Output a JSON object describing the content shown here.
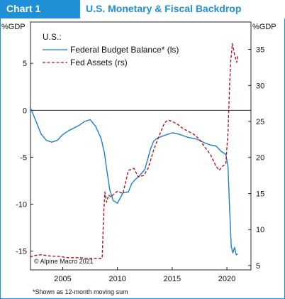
{
  "header": {
    "chart_number": "Chart 1",
    "title": "U.S. Monetary & Fiscal Backdrop"
  },
  "chart_data": {
    "type": "line",
    "left_axis": {
      "unit_label": "%GDP",
      "ticks": [
        5,
        0,
        -5,
        -10,
        -15
      ],
      "tick_labels": [
        "5",
        "0",
        "-5",
        "-10",
        "-15"
      ],
      "range": [
        -17,
        9.4
      ]
    },
    "right_axis": {
      "unit_label": "%GDP",
      "ticks": [
        5,
        10,
        15,
        20,
        25,
        30,
        35
      ],
      "tick_labels": [
        "5",
        "10",
        "15",
        "20",
        "25",
        "30",
        "35"
      ],
      "range": [
        4.4,
        38.8
      ]
    },
    "x_axis": {
      "ticks": [
        2005,
        2010,
        2015,
        2020
      ],
      "tick_labels": [
        "2005",
        "2010",
        "2015",
        "2020"
      ],
      "range": [
        2002.05,
        2022.2
      ]
    },
    "legend": {
      "title": "U.S.:",
      "placement": "top-left",
      "items": [
        {
          "label": "Federal Budget Balance* (ls)",
          "color": "#1a7fd0",
          "style": "solid"
        },
        {
          "label": "Fed Assets (rs)",
          "color": "#b3121f",
          "style": "dashed"
        }
      ]
    },
    "series": [
      {
        "name": "Federal Budget Balance* (ls)",
        "axis": "left",
        "color": "#1a7fd0",
        "x": [
          2002.0,
          2002.5,
          2003.0,
          2003.5,
          2004.0,
          2004.5,
          2005.0,
          2005.5,
          2006.0,
          2006.5,
          2007.0,
          2007.5,
          2008.0,
          2008.5,
          2008.8,
          2009.0,
          2009.3,
          2009.6,
          2010.0,
          2010.5,
          2011.0,
          2011.3,
          2011.6,
          2012.0,
          2012.5,
          2013.0,
          2013.3,
          2013.6,
          2014.0,
          2014.5,
          2015.0,
          2015.5,
          2016.0,
          2016.5,
          2017.0,
          2017.5,
          2018.0,
          2018.5,
          2019.0,
          2019.5,
          2019.9,
          2020.1,
          2020.25,
          2020.4,
          2020.55,
          2020.7,
          2020.85,
          2021.0
        ],
        "y": [
          0.4,
          -1.0,
          -2.5,
          -3.2,
          -3.4,
          -3.2,
          -2.6,
          -2.2,
          -1.9,
          -1.6,
          -1.2,
          -1.0,
          -1.7,
          -3.0,
          -4.5,
          -6.2,
          -8.5,
          -9.6,
          -9.9,
          -8.8,
          -8.7,
          -7.8,
          -7.4,
          -7.0,
          -6.3,
          -4.2,
          -3.3,
          -3.0,
          -2.8,
          -2.6,
          -2.4,
          -2.5,
          -2.7,
          -2.9,
          -3.0,
          -3.2,
          -3.5,
          -3.7,
          -3.8,
          -4.4,
          -4.7,
          -6.0,
          -10.5,
          -14.5,
          -15.2,
          -14.6,
          -15.4,
          -15.3
        ]
      },
      {
        "name": "Fed Assets (rs)",
        "axis": "right",
        "color": "#b3121f",
        "x": [
          2002.0,
          2002.5,
          2003.0,
          2003.5,
          2004.0,
          2004.5,
          2005.0,
          2005.5,
          2006.0,
          2006.5,
          2007.0,
          2007.5,
          2008.0,
          2008.6,
          2008.75,
          2008.85,
          2009.0,
          2009.2,
          2009.4,
          2009.7,
          2010.0,
          2010.5,
          2011.0,
          2011.5,
          2011.9,
          2012.4,
          2012.8,
          2013.3,
          2013.8,
          2014.3,
          2014.6,
          2015.0,
          2015.5,
          2016.0,
          2016.5,
          2017.0,
          2017.5,
          2018.0,
          2018.5,
          2019.0,
          2019.3,
          2019.6,
          2019.9,
          2020.1,
          2020.25,
          2020.35,
          2020.5,
          2020.7,
          2020.9,
          2021.0
        ],
        "y": [
          6.2,
          6.4,
          6.5,
          6.4,
          6.3,
          6.3,
          6.2,
          6.1,
          6.1,
          6.1,
          6.0,
          6.0,
          6.0,
          6.0,
          12.5,
          15.2,
          13.8,
          14.8,
          14.5,
          15.0,
          15.3,
          15.0,
          18.2,
          18.5,
          17.3,
          17.5,
          18.5,
          21.0,
          23.0,
          24.8,
          25.2,
          25.0,
          24.6,
          24.0,
          23.6,
          23.2,
          22.5,
          21.4,
          20.4,
          18.8,
          18.2,
          18.8,
          19.1,
          23.5,
          30.0,
          33.3,
          35.8,
          34.3,
          33.2,
          34.2
        ]
      }
    ],
    "zero_line": 0,
    "grid": false,
    "annotations": {
      "source": "© Alpine Macro 2021",
      "footnote": "*Shown as 12-month moving sum"
    }
  }
}
